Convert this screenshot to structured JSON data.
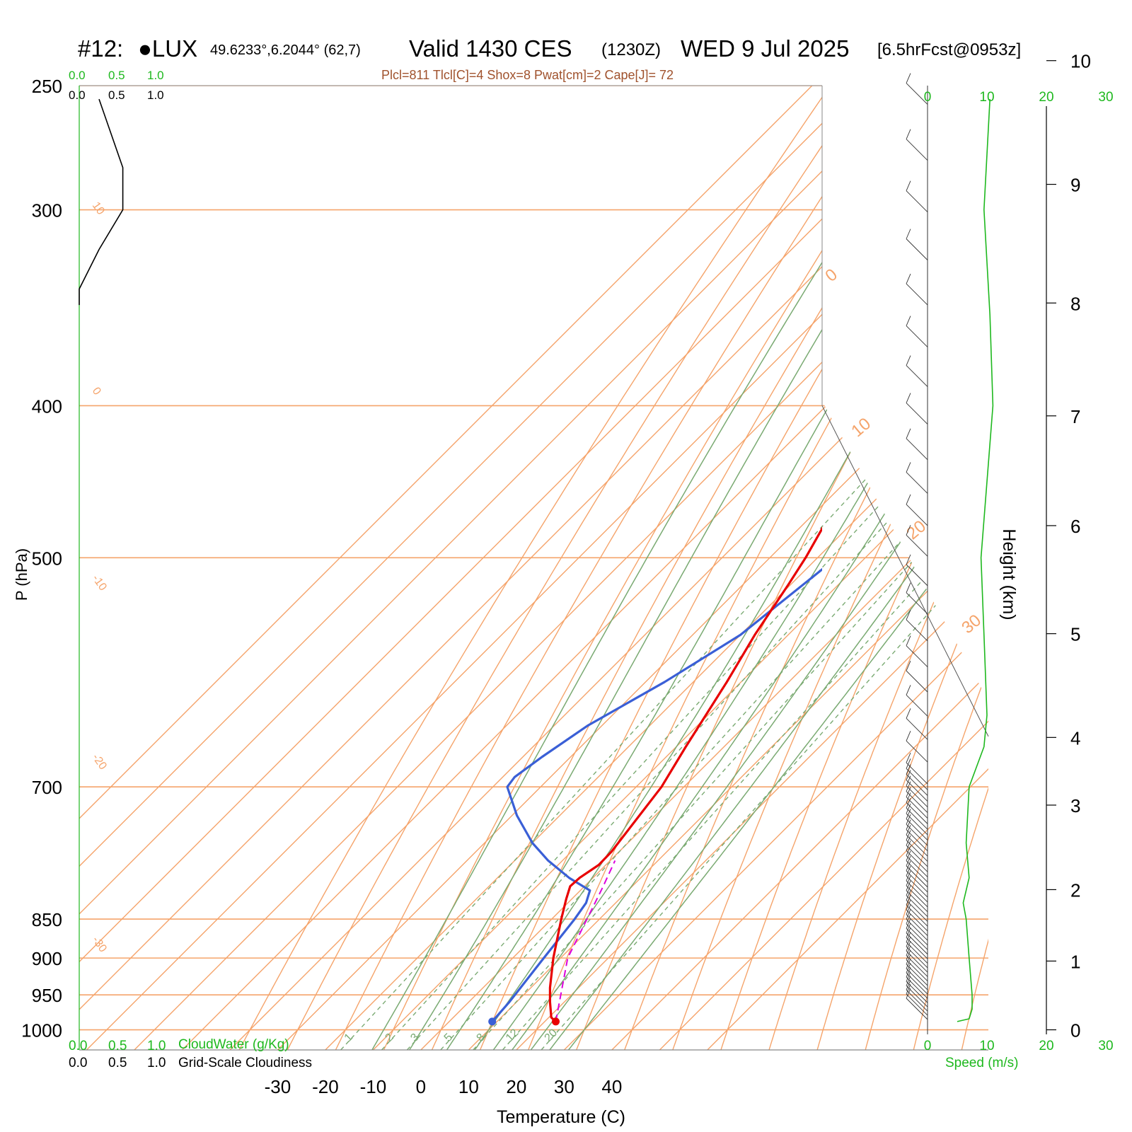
{
  "header": {
    "station_id": "#12:",
    "station_name": "●LUX",
    "coords": "49.6233°,6.2044° (62,7)",
    "valid": "Valid 1430 CES",
    "zulu": "(1230Z)",
    "date": "WED 9 Jul 2025",
    "forecast": "[6.5hrFcst@0953z]",
    "indices": "Plcl=811 Tlcl[C]=4 Shox=8 Pwat[cm]=2 Cape[J]= 72"
  },
  "colors": {
    "temperature": "#e80000",
    "dewpoint": "#3a5fd6",
    "parcel": "#dd00dd",
    "isotherm": "#f5a46b",
    "dry_adiabat": "#f5a46b",
    "moist_adiabat": "#7aaa72",
    "mixing_ratio": "#7aaa72",
    "wind_speed": "#1eb81e",
    "cloudiness": "#000000"
  },
  "chart_data": {
    "type": "line",
    "subtype": "skew-T log-P sounding",
    "xlabel": "Temperature (C)",
    "ylabel": "P (hPa)",
    "y2label": "Height (km)",
    "xlim": [
      -33,
      47
    ],
    "ylim": [
      1030,
      250
    ],
    "x_ticks": [
      -30,
      -20,
      -10,
      0,
      10,
      20,
      30,
      40
    ],
    "pressure_ticks": [
      250,
      300,
      400,
      500,
      700,
      850,
      900,
      950,
      1000
    ],
    "height_ticks": [
      0,
      1,
      2,
      3,
      4,
      5,
      6,
      7,
      8,
      9,
      10
    ],
    "height_tick_pressures": [
      1000,
      904,
      814,
      719,
      651,
      559,
      477,
      406,
      344,
      289,
      241
    ],
    "isotherm_labels": [
      -30,
      -20,
      -10,
      0,
      10,
      20,
      30
    ],
    "theta_labels": [
      "10",
      "0",
      "-10",
      "-20",
      "-30"
    ],
    "theta_right_labels": [
      "0",
      "10",
      "20",
      "30"
    ],
    "mixing_ratio_labels": [
      "1",
      "2",
      "3",
      "5",
      "8",
      "12",
      "20"
    ],
    "temperature": {
      "p": [
        988,
        982,
        960,
        940,
        900,
        850,
        825,
        810,
        800,
        785,
        770,
        700,
        660,
        600,
        560,
        520,
        500,
        450,
        400,
        350,
        300,
        270,
        255
      ],
      "t": [
        22.3,
        20.5,
        17.0,
        14.0,
        8.5,
        2.0,
        -1.2,
        -3.0,
        -2.8,
        -1.5,
        -1.6,
        -4.7,
        -8.0,
        -13.0,
        -17.0,
        -20.5,
        -22.5,
        -29.0,
        -35.5,
        -43.0,
        -51.0,
        -56.0,
        -59.0
      ]
    },
    "dewpoint": {
      "p": [
        988,
        960,
        900,
        850,
        830,
        815,
        800,
        780,
        760,
        730,
        700,
        690,
        670,
        640,
        600,
        560,
        500,
        460,
        420,
        370,
        330,
        300,
        270,
        255
      ],
      "t": [
        9.0,
        8.5,
        6.5,
        4.8,
        3.8,
        2.0,
        -5.0,
        -13.0,
        -20.0,
        -29.0,
        -37.0,
        -37.5,
        -36.0,
        -33.0,
        -26.0,
        -20.0,
        -16.0,
        -17.5,
        -22.0,
        -29.0,
        -30.0,
        -35.0,
        -40.0,
        -43.0
      ]
    },
    "parcel": {
      "p": [
        988,
        900,
        811,
        780
      ],
      "t": [
        22.3,
        11.5,
        4.0,
        1.0
      ]
    },
    "wind_speed": {
      "p": [
        988,
        984,
        970,
        950,
        900,
        850,
        830,
        800,
        760,
        700,
        660,
        630,
        560,
        500,
        400,
        350,
        300,
        255
      ],
      "v": [
        5,
        7,
        7.5,
        7.5,
        7,
        6.5,
        6,
        7,
        6.5,
        7,
        9.5,
        10,
        9.5,
        9,
        11,
        10.5,
        9.5,
        10.5
      ],
      "scale_ticks": [
        0,
        10,
        20,
        30
      ],
      "label": "Speed (m/s)"
    },
    "cloudiness": {
      "p": [
        255,
        282,
        300,
        318,
        337
      ],
      "v": [
        0.25,
        0.55,
        0.55,
        0.25,
        0.0
      ],
      "top_ticks_green": [
        "0.0",
        "0.5",
        "1.0"
      ],
      "top_ticks_black": [
        "0.0",
        "0.5",
        "1.0"
      ]
    },
    "legend": {
      "cloudwater_ticks": [
        "0.0",
        "0.5",
        "1.0"
      ],
      "cloudwater_label": "CloudWater (g/Kg)",
      "cloudiness_ticks": [
        "0.0",
        "0.5",
        "1.0"
      ],
      "cloudiness_label": "Grid-Scale Cloudiness"
    }
  }
}
